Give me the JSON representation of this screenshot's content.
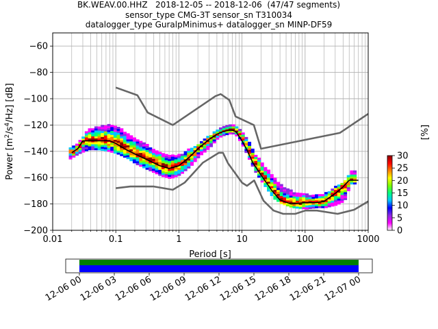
{
  "header": {
    "title_lines": [
      "BK.WEAV.00.HHZ   2018-12-05 -- 2018-12-06  (47/47 segments)",
      "sensor_type CMG-3T sensor_sn T310034",
      "datalogger_type GuralpMinimus+ datalogger_sn MINP-DF59"
    ]
  },
  "colors": {
    "noise_models": "#666666",
    "mode_line": "#000000",
    "grid": "#b0b0b0",
    "coverage_top": "#008000",
    "coverage_bottom": "#0000ff"
  },
  "colorbar": {
    "label": "[%]",
    "ticks": [
      "0",
      "5",
      "10",
      "15",
      "20",
      "25",
      "30"
    ],
    "range": [
      0,
      30
    ],
    "colormap": [
      "#ffffff",
      "#ff00ff",
      "#8a2be2",
      "#0000ff",
      "#00c8ff",
      "#00ff80",
      "#80ff00",
      "#ffff00",
      "#ff8000",
      "#ff0000",
      "#8b0000"
    ]
  },
  "chart_data": [
    {
      "type": "heatmap",
      "title": "BK.WEAV.00.HHZ   2018-12-05 -- 2018-12-06  (47/47 segments)",
      "xlabel": "Period [s]",
      "ylabel": "Power [m²/s⁴/Hz] [dB]",
      "x_scale": "log",
      "xlim": [
        0.01,
        1000
      ],
      "ylim": [
        -200,
        -50
      ],
      "x_ticks": [
        "0.01",
        "0.1",
        "1",
        "10",
        "100",
        "1000"
      ],
      "y_ticks": [
        "−200",
        "−180",
        "−160",
        "−140",
        "−120",
        "−100",
        "−80",
        "−60"
      ],
      "grid": true,
      "series": [
        {
          "name": "mode",
          "x": [
            0.02,
            0.025,
            0.03,
            0.04,
            0.06,
            0.08,
            0.1,
            0.15,
            0.2,
            0.3,
            0.5,
            0.7,
            1,
            1.5,
            2,
            3,
            4,
            5,
            6,
            7,
            8,
            10,
            12,
            15,
            20,
            30,
            40,
            60,
            100,
            150,
            200,
            300,
            400,
            500,
            700
          ],
          "y": [
            -141,
            -138,
            -132,
            -132,
            -132,
            -132,
            -134,
            -139,
            -142,
            -146,
            -151,
            -153,
            -151,
            -144,
            -138,
            -131,
            -127,
            -125,
            -124,
            -124,
            -125,
            -132,
            -139,
            -149,
            -158,
            -170,
            -177,
            -180,
            -179,
            -179,
            -178,
            -172,
            -167,
            -162,
            -162
          ]
        },
        {
          "name": "high_noise_model",
          "x": [
            0.1,
            0.22,
            0.32,
            0.8,
            3.8,
            4.6,
            6.3,
            7.9,
            15.4,
            20,
            354.8,
            1000
          ],
          "y": [
            -91.5,
            -97.4,
            -110.5,
            -120,
            -98,
            -96.5,
            -101,
            -113.5,
            -120,
            -138,
            -126,
            -111.5
          ]
        },
        {
          "name": "low_noise_model",
          "x": [
            0.1,
            0.17,
            0.4,
            0.8,
            1.24,
            2.4,
            4.3,
            5,
            6,
            10,
            12,
            15.6,
            21.9,
            31.6,
            45,
            70,
            101,
            154,
            328,
            600,
            1000
          ],
          "y": [
            -168,
            -166.7,
            -166.7,
            -169.2,
            -163.7,
            -148.6,
            -141.1,
            -141.1,
            -149,
            -163.8,
            -166.2,
            -162.1,
            -177.5,
            -185,
            -187.5,
            -187.5,
            -185,
            -185,
            -187.5,
            -184.4,
            -178
          ]
        }
      ],
      "density_band": {
        "x": [
          0.018,
          0.025,
          0.035,
          0.05,
          0.07,
          0.1,
          0.15,
          0.2,
          0.3,
          0.5,
          0.7,
          1,
          1.5,
          2,
          3,
          4,
          5,
          6,
          7,
          8,
          10,
          12,
          15,
          20,
          30,
          40,
          60,
          100,
          150,
          200,
          300,
          400,
          500,
          650
        ],
        "upper": [
          -138,
          -133,
          -124,
          -122,
          -120,
          -121,
          -128,
          -131,
          -136,
          -142,
          -144,
          -143,
          -138,
          -134,
          -128,
          -124,
          -122,
          -121,
          -121,
          -122,
          -127,
          -132,
          -142,
          -150,
          -160,
          -166,
          -171,
          -173,
          -174,
          -172,
          -167,
          -164,
          -156,
          -156
        ],
        "lower": [
          -146,
          -142,
          -139,
          -139,
          -140,
          -142,
          -146,
          -150,
          -154,
          -159,
          -161,
          -158,
          -151,
          -144,
          -137,
          -130,
          -128,
          -127,
          -127,
          -129,
          -137,
          -145,
          -155,
          -164,
          -176,
          -180,
          -183,
          -184,
          -183,
          -183,
          -181,
          -178,
          -165,
          -165
        ]
      }
    },
    {
      "type": "bar",
      "title": "",
      "xlabel": "",
      "ylabel": "",
      "x_ticks": [
        "12-06 00",
        "12-06 03",
        "12-06 06",
        "12-06 09",
        "12-06 12",
        "12-06 15",
        "12-06 18",
        "12-06 21",
        "12-07 00"
      ],
      "coverage": [
        {
          "name": "top",
          "start": "12-06 00",
          "end": "12-07 00"
        },
        {
          "name": "bottom",
          "start": "12-06 00",
          "end": "12-07 00"
        }
      ]
    }
  ]
}
